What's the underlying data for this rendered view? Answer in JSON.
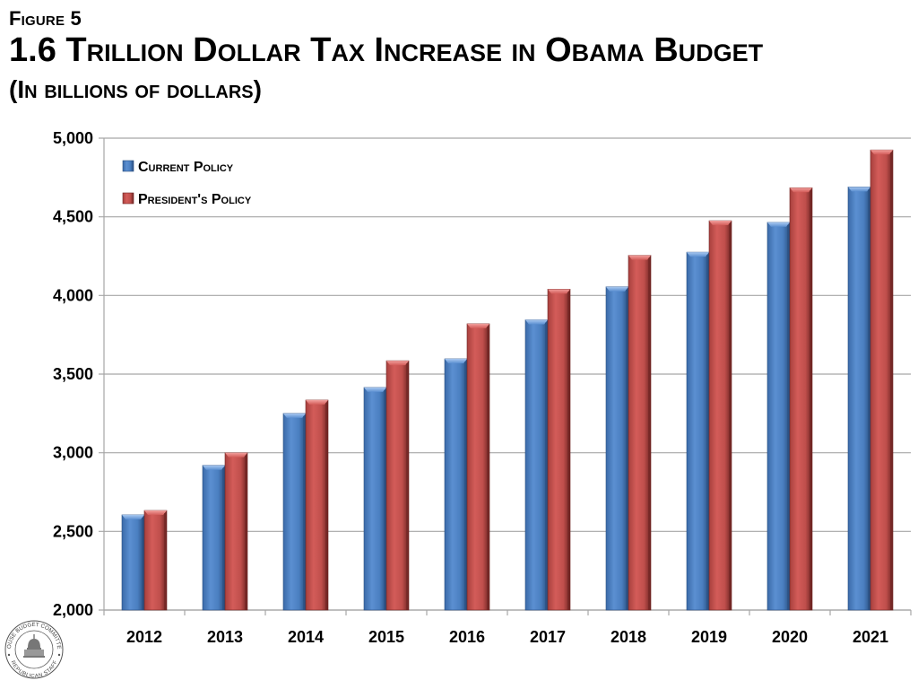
{
  "header": {
    "figure_label": "Figure 5",
    "title": "1.6 Trillion Dollar Tax Increase in Obama Budget",
    "subtitle": "(In billions of dollars)"
  },
  "logo": {
    "top_text": "HOUSE BUDGET COMMITTEE",
    "bottom_text": "REPUBLICAN STAFF",
    "icon": "capitol-dome-seal-icon"
  },
  "colors": {
    "current_policy": "#4f81bd",
    "presidents_policy": "#c0504d",
    "gridline": "#a6a6a6"
  },
  "chart_data": {
    "type": "bar",
    "title": "1.6 Trillion Dollar Tax Increase in Obama Budget",
    "subtitle": "(In billions of dollars)",
    "xlabel": "",
    "ylabel": "",
    "categories": [
      "2012",
      "2013",
      "2014",
      "2015",
      "2016",
      "2017",
      "2018",
      "2019",
      "2020",
      "2021"
    ],
    "series": [
      {
        "name": "Current Policy",
        "color": "#4f81bd",
        "values": [
          2605,
          2920,
          3250,
          3415,
          3597,
          3845,
          4055,
          4275,
          4465,
          4690
        ]
      },
      {
        "name": "President's Policy",
        "color": "#c0504d",
        "values": [
          2633,
          3000,
          3335,
          3585,
          3820,
          4040,
          4255,
          4475,
          4685,
          4925
        ]
      }
    ],
    "ylim": [
      2000,
      5000
    ],
    "yticks": [
      2000,
      2500,
      3000,
      3500,
      4000,
      4500,
      5000
    ],
    "ytick_labels": [
      "2,000",
      "2,500",
      "3,000",
      "3,500",
      "4,000",
      "4,500",
      "5,000"
    ],
    "grid": true,
    "legend_position": "top-left"
  }
}
